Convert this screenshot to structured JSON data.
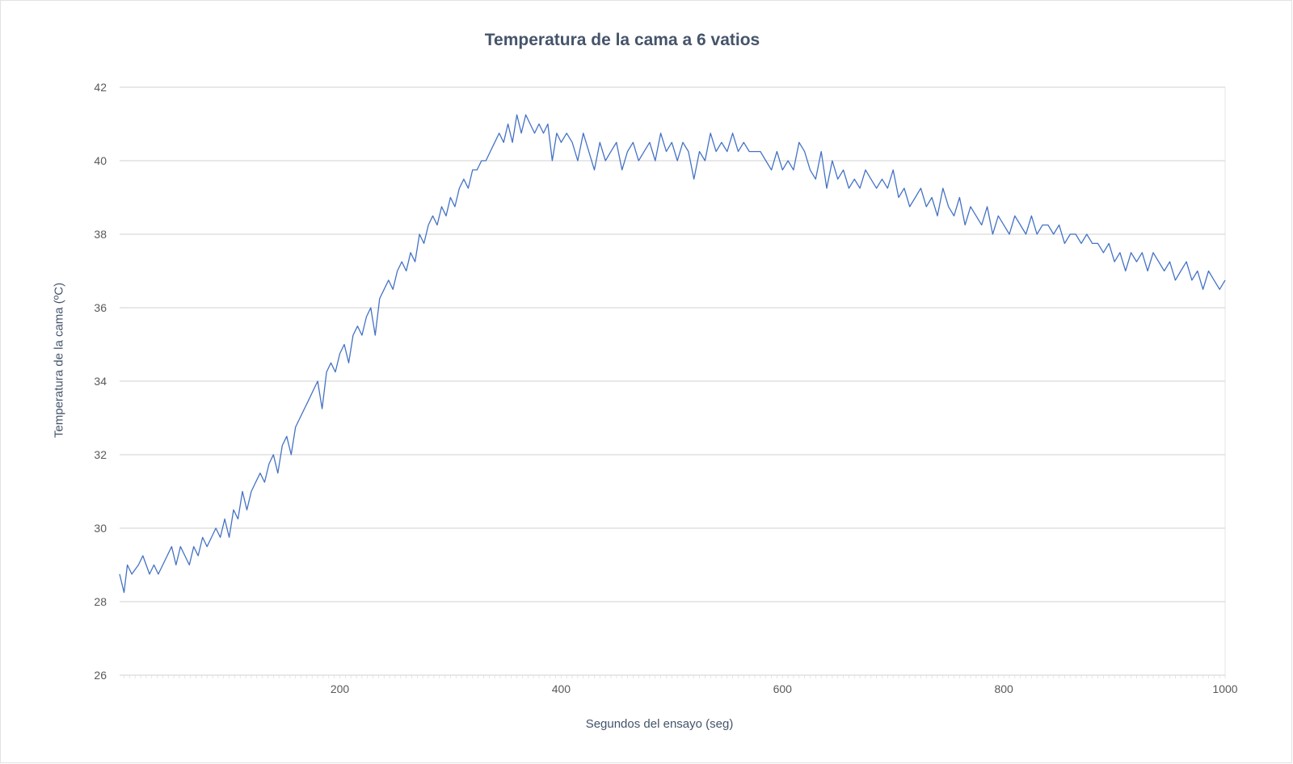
{
  "chart_data": {
    "type": "line",
    "title": "Temperatura de la cama a 6 vatios",
    "xlabel": "Segundos del ensayo (seg)",
    "ylabel": "Temperatura de la cama (ºC)",
    "xlim": [
      1,
      1000
    ],
    "ylim": [
      26,
      42
    ],
    "x_ticks": [
      200,
      400,
      600,
      800,
      1000
    ],
    "y_ticks": [
      26,
      28,
      30,
      32,
      34,
      36,
      38,
      40,
      42
    ],
    "grid": "horizontal",
    "legend": "none",
    "series": [
      {
        "color": "#4472c4",
        "points": [
          [
            1,
            28.75
          ],
          [
            5,
            28.25
          ],
          [
            8,
            29.0
          ],
          [
            12,
            28.75
          ],
          [
            18,
            29.0
          ],
          [
            22,
            29.25
          ],
          [
            28,
            28.75
          ],
          [
            32,
            29.0
          ],
          [
            36,
            28.75
          ],
          [
            40,
            29.0
          ],
          [
            44,
            29.25
          ],
          [
            48,
            29.5
          ],
          [
            52,
            29.0
          ],
          [
            56,
            29.5
          ],
          [
            60,
            29.25
          ],
          [
            64,
            29.0
          ],
          [
            68,
            29.5
          ],
          [
            72,
            29.25
          ],
          [
            76,
            29.75
          ],
          [
            80,
            29.5
          ],
          [
            84,
            29.75
          ],
          [
            88,
            30.0
          ],
          [
            92,
            29.75
          ],
          [
            96,
            30.25
          ],
          [
            100,
            29.75
          ],
          [
            104,
            30.5
          ],
          [
            108,
            30.25
          ],
          [
            112,
            31.0
          ],
          [
            116,
            30.5
          ],
          [
            120,
            31.0
          ],
          [
            124,
            31.25
          ],
          [
            128,
            31.5
          ],
          [
            132,
            31.25
          ],
          [
            136,
            31.75
          ],
          [
            140,
            32.0
          ],
          [
            144,
            31.5
          ],
          [
            148,
            32.25
          ],
          [
            152,
            32.5
          ],
          [
            156,
            32.0
          ],
          [
            160,
            32.75
          ],
          [
            164,
            33.0
          ],
          [
            168,
            33.25
          ],
          [
            172,
            33.5
          ],
          [
            176,
            33.75
          ],
          [
            180,
            34.0
          ],
          [
            184,
            33.25
          ],
          [
            188,
            34.25
          ],
          [
            192,
            34.5
          ],
          [
            196,
            34.25
          ],
          [
            200,
            34.75
          ],
          [
            204,
            35.0
          ],
          [
            208,
            34.5
          ],
          [
            212,
            35.25
          ],
          [
            216,
            35.5
          ],
          [
            220,
            35.25
          ],
          [
            224,
            35.75
          ],
          [
            228,
            36.0
          ],
          [
            232,
            35.25
          ],
          [
            236,
            36.25
          ],
          [
            240,
            36.5
          ],
          [
            244,
            36.75
          ],
          [
            248,
            36.5
          ],
          [
            252,
            37.0
          ],
          [
            256,
            37.25
          ],
          [
            260,
            37.0
          ],
          [
            264,
            37.5
          ],
          [
            268,
            37.25
          ],
          [
            272,
            38.0
          ],
          [
            276,
            37.75
          ],
          [
            280,
            38.25
          ],
          [
            284,
            38.5
          ],
          [
            288,
            38.25
          ],
          [
            292,
            38.75
          ],
          [
            296,
            38.5
          ],
          [
            300,
            39.0
          ],
          [
            304,
            38.75
          ],
          [
            308,
            39.25
          ],
          [
            312,
            39.5
          ],
          [
            316,
            39.25
          ],
          [
            320,
            39.75
          ],
          [
            324,
            39.75
          ],
          [
            328,
            40.0
          ],
          [
            332,
            40.0
          ],
          [
            336,
            40.25
          ],
          [
            340,
            40.5
          ],
          [
            344,
            40.75
          ],
          [
            348,
            40.5
          ],
          [
            352,
            41.0
          ],
          [
            356,
            40.5
          ],
          [
            360,
            41.25
          ],
          [
            364,
            40.75
          ],
          [
            368,
            41.25
          ],
          [
            372,
            41.0
          ],
          [
            376,
            40.75
          ],
          [
            380,
            41.0
          ],
          [
            384,
            40.75
          ],
          [
            388,
            41.0
          ],
          [
            392,
            40.0
          ],
          [
            396,
            40.75
          ],
          [
            400,
            40.5
          ],
          [
            405,
            40.75
          ],
          [
            410,
            40.5
          ],
          [
            415,
            40.0
          ],
          [
            420,
            40.75
          ],
          [
            425,
            40.25
          ],
          [
            430,
            39.75
          ],
          [
            435,
            40.5
          ],
          [
            440,
            40.0
          ],
          [
            445,
            40.25
          ],
          [
            450,
            40.5
          ],
          [
            455,
            39.75
          ],
          [
            460,
            40.25
          ],
          [
            465,
            40.5
          ],
          [
            470,
            40.0
          ],
          [
            475,
            40.25
          ],
          [
            480,
            40.5
          ],
          [
            485,
            40.0
          ],
          [
            490,
            40.75
          ],
          [
            495,
            40.25
          ],
          [
            500,
            40.5
          ],
          [
            505,
            40.0
          ],
          [
            510,
            40.5
          ],
          [
            515,
            40.25
          ],
          [
            520,
            39.5
          ],
          [
            525,
            40.25
          ],
          [
            530,
            40.0
          ],
          [
            535,
            40.75
          ],
          [
            540,
            40.25
          ],
          [
            545,
            40.5
          ],
          [
            550,
            40.25
          ],
          [
            555,
            40.75
          ],
          [
            560,
            40.25
          ],
          [
            565,
            40.5
          ],
          [
            570,
            40.25
          ],
          [
            575,
            40.25
          ],
          [
            580,
            40.25
          ],
          [
            585,
            40.0
          ],
          [
            590,
            39.75
          ],
          [
            595,
            40.25
          ],
          [
            600,
            39.75
          ],
          [
            605,
            40.0
          ],
          [
            610,
            39.75
          ],
          [
            615,
            40.5
          ],
          [
            620,
            40.25
          ],
          [
            625,
            39.75
          ],
          [
            630,
            39.5
          ],
          [
            635,
            40.25
          ],
          [
            640,
            39.25
          ],
          [
            645,
            40.0
          ],
          [
            650,
            39.5
          ],
          [
            655,
            39.75
          ],
          [
            660,
            39.25
          ],
          [
            665,
            39.5
          ],
          [
            670,
            39.25
          ],
          [
            675,
            39.75
          ],
          [
            680,
            39.5
          ],
          [
            685,
            39.25
          ],
          [
            690,
            39.5
          ],
          [
            695,
            39.25
          ],
          [
            700,
            39.75
          ],
          [
            705,
            39.0
          ],
          [
            710,
            39.25
          ],
          [
            715,
            38.75
          ],
          [
            720,
            39.0
          ],
          [
            725,
            39.25
          ],
          [
            730,
            38.75
          ],
          [
            735,
            39.0
          ],
          [
            740,
            38.5
          ],
          [
            745,
            39.25
          ],
          [
            750,
            38.75
          ],
          [
            755,
            38.5
          ],
          [
            760,
            39.0
          ],
          [
            765,
            38.25
          ],
          [
            770,
            38.75
          ],
          [
            775,
            38.5
          ],
          [
            780,
            38.25
          ],
          [
            785,
            38.75
          ],
          [
            790,
            38.0
          ],
          [
            795,
            38.5
          ],
          [
            800,
            38.25
          ],
          [
            805,
            38.0
          ],
          [
            810,
            38.5
          ],
          [
            815,
            38.25
          ],
          [
            820,
            38.0
          ],
          [
            825,
            38.5
          ],
          [
            830,
            38.0
          ],
          [
            835,
            38.25
          ],
          [
            840,
            38.25
          ],
          [
            845,
            38.0
          ],
          [
            850,
            38.25
          ],
          [
            855,
            37.75
          ],
          [
            860,
            38.0
          ],
          [
            865,
            38.0
          ],
          [
            870,
            37.75
          ],
          [
            875,
            38.0
          ],
          [
            880,
            37.75
          ],
          [
            885,
            37.75
          ],
          [
            890,
            37.5
          ],
          [
            895,
            37.75
          ],
          [
            900,
            37.25
          ],
          [
            905,
            37.5
          ],
          [
            910,
            37.0
          ],
          [
            915,
            37.5
          ],
          [
            920,
            37.25
          ],
          [
            925,
            37.5
          ],
          [
            930,
            37.0
          ],
          [
            935,
            37.5
          ],
          [
            940,
            37.25
          ],
          [
            945,
            37.0
          ],
          [
            950,
            37.25
          ],
          [
            955,
            36.75
          ],
          [
            960,
            37.0
          ],
          [
            965,
            37.25
          ],
          [
            970,
            36.75
          ],
          [
            975,
            37.0
          ],
          [
            980,
            36.5
          ],
          [
            985,
            37.0
          ],
          [
            990,
            36.75
          ],
          [
            995,
            36.5
          ],
          [
            1000,
            36.75
          ]
        ]
      }
    ]
  }
}
